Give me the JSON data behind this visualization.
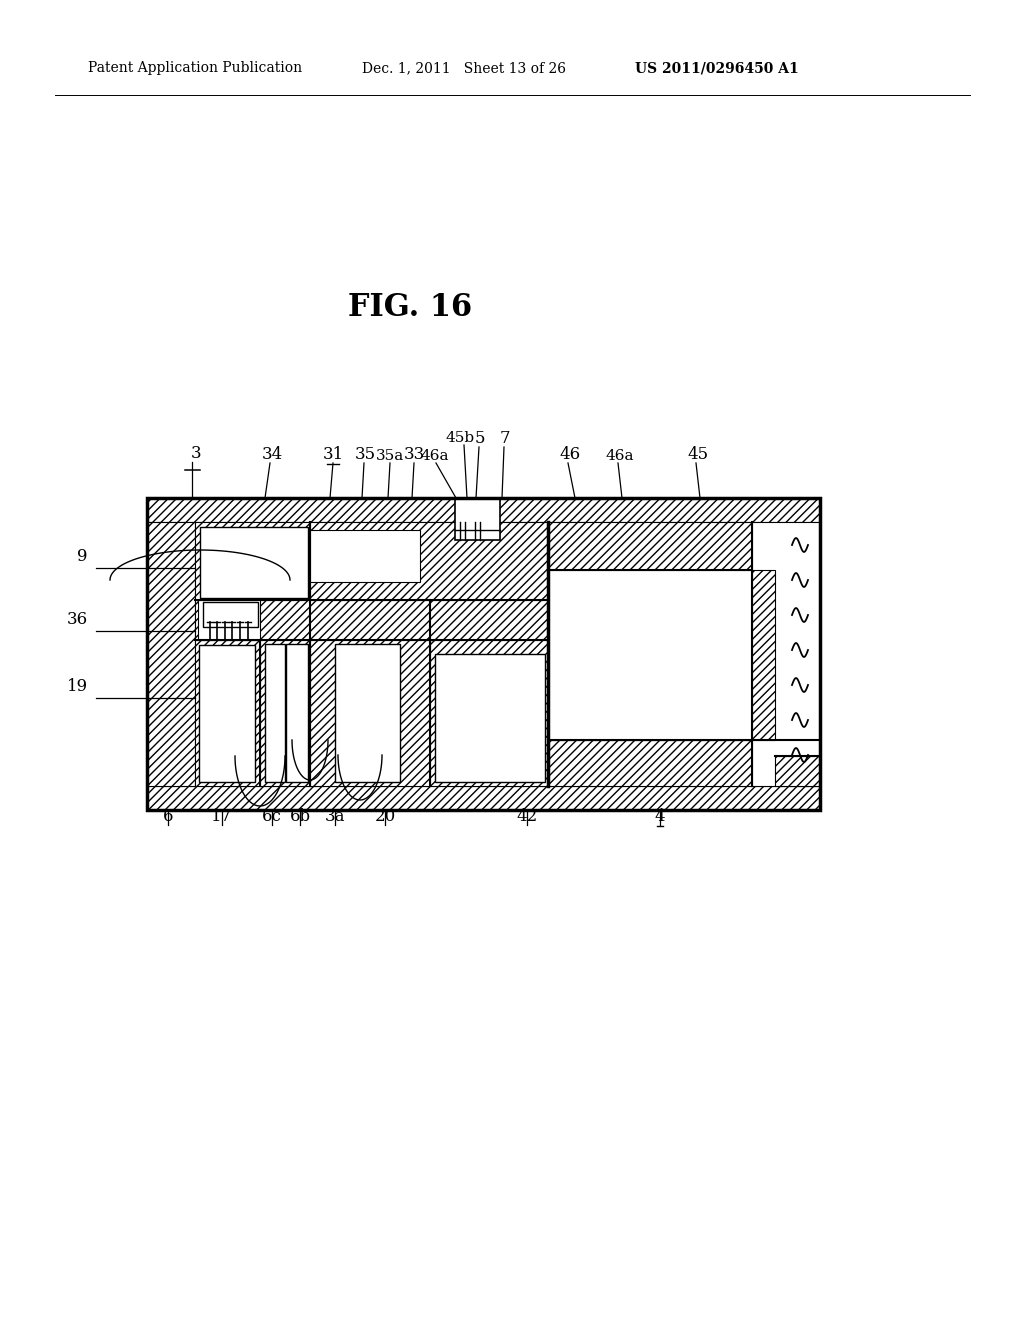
{
  "title": "FIG. 16",
  "header_left": "Patent Application Publication",
  "header_center": "Dec. 1, 2011   Sheet 13 of 26",
  "header_right": "US 2011/0296450 A1",
  "bg_color": "#ffffff",
  "line_color": "#000000"
}
